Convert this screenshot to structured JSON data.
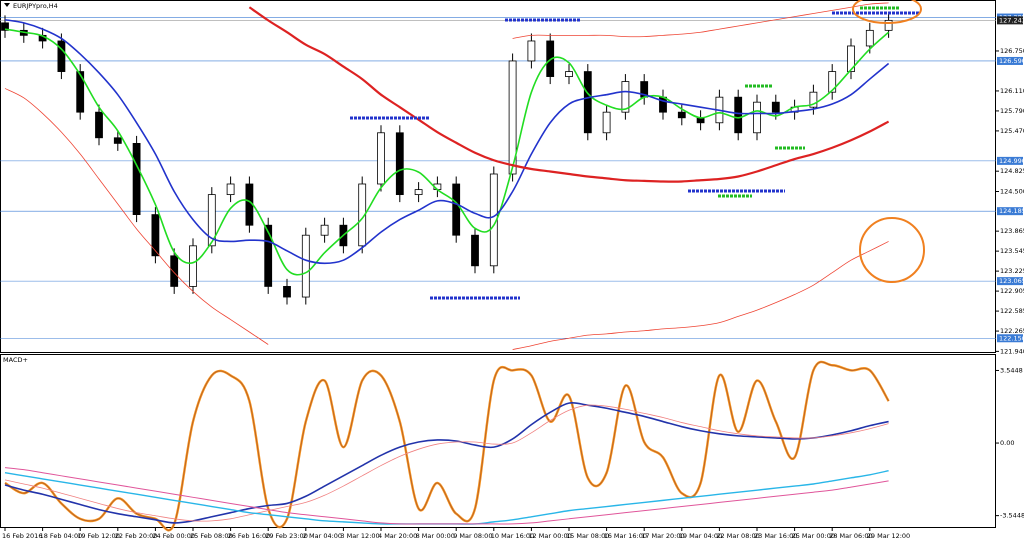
{
  "chart_data": [
    {
      "type": "candlestick",
      "title": "EURJPYpro,H4",
      "categories": [
        "16 Feb 2016",
        null,
        "18 Feb 04:00",
        null,
        "19 Feb 12:00",
        null,
        "22 Feb 20:00",
        null,
        "24 Feb 00:00",
        null,
        "25 Feb 08:00",
        null,
        "26 Feb 16:00",
        null,
        "29 Feb 23:00",
        null,
        "2 Mar 04:00",
        null,
        "3 Mar 12:00",
        null,
        "4 Mar 20:00",
        null,
        "8 Mar 00:00",
        null,
        "9 Mar 08:00",
        null,
        "10 Mar 16:00",
        null,
        "12 Mar 00:00",
        null,
        "15 Mar 08:00",
        null,
        "16 Mar 16:00",
        null,
        "17 Mar 20:00",
        null,
        "19 Mar 04:00",
        null,
        "22 Mar 08:00",
        null,
        "23 Mar 16:00",
        null,
        "25 Mar 00:00",
        null,
        "28 Mar 06:00",
        null,
        "29 Mar 12:00",
        null
      ],
      "open": [
        127.2,
        127.08,
        127.0,
        126.91,
        126.42,
        125.77,
        125.36,
        125.27,
        124.13,
        123.47,
        122.98,
        123.63,
        124.45,
        124.62,
        123.96,
        122.98,
        122.81,
        123.8,
        123.96,
        123.63,
        124.62,
        125.44,
        124.45,
        124.53,
        124.62,
        123.8,
        123.31,
        124.78,
        126.59,
        126.91,
        126.34,
        126.42,
        125.44,
        125.77,
        126.26,
        126.01,
        125.77,
        125.68,
        125.6,
        126.01,
        125.44,
        125.93,
        125.77,
        125.85,
        126.09,
        126.42,
        126.83,
        127.08
      ],
      "high": [
        127.32,
        127.2,
        127.12,
        127.03,
        126.54,
        125.89,
        125.48,
        125.39,
        124.25,
        123.59,
        123.75,
        124.57,
        124.74,
        124.74,
        124.08,
        123.1,
        123.92,
        124.08,
        124.08,
        124.74,
        125.56,
        125.56,
        124.65,
        124.74,
        124.74,
        123.92,
        124.9,
        126.71,
        127.03,
        127.03,
        126.54,
        126.54,
        125.89,
        126.38,
        126.38,
        126.13,
        125.89,
        125.8,
        126.13,
        126.13,
        126.05,
        126.05,
        125.97,
        126.21,
        126.54,
        126.95,
        127.2,
        127.36
      ],
      "low": [
        126.96,
        126.88,
        126.79,
        126.3,
        125.65,
        125.24,
        125.15,
        124.01,
        123.35,
        122.86,
        122.86,
        123.51,
        124.33,
        123.84,
        122.86,
        122.69,
        122.69,
        123.68,
        123.51,
        123.51,
        124.5,
        124.33,
        124.33,
        124.41,
        123.68,
        123.19,
        123.19,
        124.66,
        126.47,
        126.22,
        126.22,
        125.32,
        125.32,
        125.65,
        125.89,
        125.65,
        125.56,
        125.48,
        125.48,
        125.32,
        125.32,
        125.65,
        125.65,
        125.73,
        125.97,
        126.3,
        126.71,
        126.96
      ],
      "close": [
        127.08,
        127.0,
        126.91,
        126.42,
        125.77,
        125.36,
        125.27,
        124.13,
        123.47,
        122.98,
        123.63,
        124.45,
        124.62,
        123.96,
        122.98,
        122.81,
        123.8,
        123.96,
        123.63,
        124.62,
        125.44,
        124.45,
        124.53,
        124.62,
        123.8,
        123.31,
        124.78,
        126.59,
        126.91,
        126.34,
        126.42,
        125.44,
        125.77,
        126.26,
        126.01,
        125.77,
        125.68,
        125.6,
        126.01,
        125.44,
        125.93,
        125.77,
        125.85,
        126.09,
        126.42,
        126.83,
        127.08,
        127.24
      ],
      "lines": [
        {
          "color": "#22dd22",
          "width": 1.6,
          "values": [
            127.1,
            127.05,
            126.99,
            126.78,
            126.37,
            125.85,
            125.47,
            124.92,
            124.29,
            123.53,
            123.36,
            123.69,
            124.23,
            124.34,
            123.85,
            123.25,
            123.2,
            123.52,
            123.8,
            124.07,
            124.56,
            124.84,
            124.81,
            124.53,
            124.32,
            123.91,
            123.96,
            124.89,
            126.09,
            126.61,
            126.56,
            126.07,
            125.88,
            125.82,
            126.01,
            126.01,
            125.82,
            125.68,
            125.76,
            125.68,
            125.79,
            125.71,
            125.85,
            125.9,
            126.12,
            126.45,
            126.78,
            127.05
          ]
        },
        {
          "color": "#2233cc",
          "width": 1.6,
          "values": [
            127.25,
            127.2,
            127.1,
            126.95,
            126.7,
            126.4,
            126.05,
            125.6,
            125.1,
            124.5,
            124.05,
            123.75,
            123.7,
            123.72,
            123.7,
            123.55,
            123.4,
            123.35,
            123.4,
            123.6,
            123.85,
            124.05,
            124.2,
            124.35,
            124.3,
            124.15,
            124.1,
            124.5,
            125.1,
            125.6,
            125.9,
            126.0,
            126.05,
            126.1,
            126.05,
            125.95,
            125.9,
            125.85,
            125.8,
            125.75,
            125.75,
            125.75,
            125.78,
            125.82,
            125.9,
            126.05,
            126.3,
            126.55
          ]
        },
        {
          "color": "#dd2222",
          "width": 2.2,
          "values": [
            null,
            null,
            null,
            null,
            null,
            null,
            null,
            null,
            null,
            null,
            null,
            null,
            null,
            127.45,
            127.24,
            127.05,
            126.85,
            126.7,
            126.5,
            126.3,
            126.05,
            125.85,
            125.65,
            125.45,
            125.28,
            125.12,
            125.0,
            124.92,
            124.86,
            124.82,
            124.78,
            124.74,
            124.71,
            124.68,
            124.67,
            124.66,
            124.66,
            124.68,
            124.7,
            124.74,
            124.82,
            124.92,
            125.02,
            125.1,
            125.2,
            125.32,
            125.46,
            125.62
          ]
        },
        {
          "color": "#ee4433",
          "width": 0.8,
          "values": [
            null,
            null,
            null,
            null,
            null,
            null,
            null,
            null,
            null,
            null,
            null,
            null,
            null,
            null,
            null,
            null,
            null,
            null,
            null,
            null,
            null,
            null,
            null,
            null,
            null,
            null,
            null,
            126.95,
            127.0,
            127.0,
            127.0,
            127.0,
            127.0,
            126.98,
            126.98,
            127.0,
            127.02,
            127.05,
            127.1,
            127.15,
            127.2,
            127.25,
            127.3,
            127.35,
            127.4,
            127.45,
            127.5,
            127.52
          ]
        },
        {
          "color": "#ee4433",
          "width": 0.8,
          "values": [
            126.15,
            126.0,
            125.75,
            125.45,
            125.1,
            124.7,
            124.3,
            123.9,
            123.55,
            123.2,
            122.9,
            122.65,
            122.45,
            122.25,
            122.05,
            null,
            null,
            null,
            null,
            null,
            null,
            null,
            null,
            null,
            null,
            null,
            null,
            121.97,
            122.03,
            122.1,
            122.15,
            122.2,
            122.22,
            122.25,
            122.27,
            122.3,
            122.32,
            122.35,
            122.4,
            122.5,
            122.6,
            122.72,
            122.85,
            123.0,
            123.2,
            123.4,
            123.55,
            123.7
          ]
        }
      ],
      "ylim": [
        121.93,
        127.55
      ],
      "yticks": [
        {
          "value": 126.75,
          "label": "126.750"
        },
        {
          "value": 126.11,
          "label": "126.110"
        },
        {
          "value": 125.79,
          "label": "125.790"
        },
        {
          "value": 125.47,
          "label": "125.470"
        },
        {
          "value": 124.825,
          "label": "124.825"
        },
        {
          "value": 124.5,
          "label": "124.500"
        },
        {
          "value": 123.865,
          "label": "123.865"
        },
        {
          "value": 123.545,
          "label": "123.545"
        },
        {
          "value": 123.225,
          "label": "123.225"
        },
        {
          "value": 122.905,
          "label": "122.905"
        },
        {
          "value": 122.585,
          "label": "122.585"
        },
        {
          "value": 122.265,
          "label": "122.265"
        },
        {
          "value": 121.94,
          "label": "121.940"
        }
      ],
      "levels": [
        {
          "value": 127.285,
          "label": "127.285"
        },
        {
          "value": 126.59,
          "label": "126.590"
        },
        {
          "value": 124.99,
          "label": "124.990"
        },
        {
          "value": 124.185,
          "label": "124.185"
        },
        {
          "value": 123.065,
          "label": "123.065"
        },
        {
          "value": 122.15,
          "label": "122.150"
        }
      ],
      "last_price": {
        "value": 127.24,
        "label": "127.243"
      }
    },
    {
      "type": "line",
      "title": "MACD+",
      "series": [
        {
          "color": "#f7931e",
          "width": 2.4,
          "values": [
            -1.95,
            -2.45,
            -1.95,
            -2.95,
            -3.7,
            -3.7,
            -2.7,
            -3.45,
            -3.7,
            -3.95,
            1.05,
            3.3,
            3.3,
            2.05,
            -3.2,
            -3.7,
            1.05,
            3.05,
            -0.2,
            3.05,
            3.3,
            1.05,
            -3.2,
            -1.95,
            -3.45,
            -3.2,
            3.05,
            3.55,
            3.3,
            1.05,
            2.3,
            -1.7,
            -1.45,
            2.8,
            0.05,
            -0.7,
            -2.45,
            -1.95,
            3.3,
            0.55,
            3.05,
            1.05,
            -0.7,
            3.55,
            3.8,
            3.55,
            3.55,
            2.05
          ]
        },
        {
          "color": "#2233aa",
          "width": 1.6,
          "values": [
            -2.05,
            -2.3,
            -2.5,
            -2.75,
            -3.0,
            -3.25,
            -3.45,
            -3.6,
            -3.75,
            -3.9,
            -3.8,
            -3.6,
            -3.4,
            -3.2,
            -3.05,
            -2.95,
            -2.6,
            -2.1,
            -1.6,
            -1.1,
            -0.6,
            -0.2,
            0.05,
            0.15,
            0.1,
            -0.1,
            -0.2,
            0.2,
            0.9,
            1.5,
            1.95,
            1.85,
            1.7,
            1.5,
            1.3,
            1.05,
            0.8,
            0.6,
            0.45,
            0.35,
            0.3,
            0.25,
            0.2,
            0.25,
            0.4,
            0.6,
            0.85,
            1.05
          ]
        },
        {
          "color": "#f08080",
          "width": 0.8,
          "values": [
            -1.8,
            -2.0,
            -2.2,
            -2.45,
            -2.7,
            -2.95,
            -3.2,
            -3.4,
            -3.55,
            -3.7,
            -3.8,
            -3.8,
            -3.7,
            -3.5,
            -3.3,
            -3.1,
            -2.9,
            -2.55,
            -2.1,
            -1.6,
            -1.1,
            -0.65,
            -0.3,
            -0.05,
            0.05,
            0.05,
            -0.05,
            0.0,
            0.5,
            1.1,
            1.6,
            1.85,
            1.8,
            1.65,
            1.45,
            1.25,
            1.0,
            0.8,
            0.6,
            0.45,
            0.35,
            0.3,
            0.25,
            0.25,
            0.35,
            0.5,
            0.7,
            0.95
          ]
        },
        {
          "color": "#29b6e8",
          "width": 1.4,
          "values": [
            -1.45,
            -1.6,
            -1.75,
            -1.9,
            -2.05,
            -2.2,
            -2.35,
            -2.5,
            -2.65,
            -2.8,
            -2.95,
            -3.1,
            -3.25,
            -3.4,
            -3.5,
            -3.6,
            -3.7,
            -3.8,
            -3.85,
            -3.9,
            -3.95,
            -3.95,
            -3.95,
            -3.95,
            -3.95,
            -3.95,
            -3.85,
            -3.75,
            -3.6,
            -3.45,
            -3.3,
            -3.2,
            -3.1,
            -3.0,
            -2.9,
            -2.8,
            -2.7,
            -2.6,
            -2.5,
            -2.4,
            -2.3,
            -2.2,
            -2.1,
            -2.0,
            -1.85,
            -1.7,
            -1.55,
            -1.35
          ]
        },
        {
          "color": "#e0559a",
          "width": 1.0,
          "values": [
            -1.2,
            -1.3,
            -1.45,
            -1.6,
            -1.75,
            -1.9,
            -2.05,
            -2.2,
            -2.35,
            -2.5,
            -2.65,
            -2.8,
            -2.95,
            -3.1,
            -3.25,
            -3.4,
            -3.5,
            -3.6,
            -3.7,
            -3.8,
            -3.9,
            -3.95,
            -3.95,
            -3.95,
            -3.95,
            -3.95,
            -3.95,
            -3.95,
            -3.9,
            -3.8,
            -3.7,
            -3.6,
            -3.5,
            -3.4,
            -3.3,
            -3.2,
            -3.1,
            -3.0,
            -2.9,
            -2.8,
            -2.7,
            -2.6,
            -2.5,
            -2.4,
            -2.3,
            -2.15,
            -2.0,
            -1.85
          ]
        }
      ],
      "ylim": [
        -4.1,
        4.3
      ],
      "yticks": [
        3.5448,
        {
          "value": 0,
          "label": "0.00"
        },
        -3.5448
      ]
    }
  ]
}
